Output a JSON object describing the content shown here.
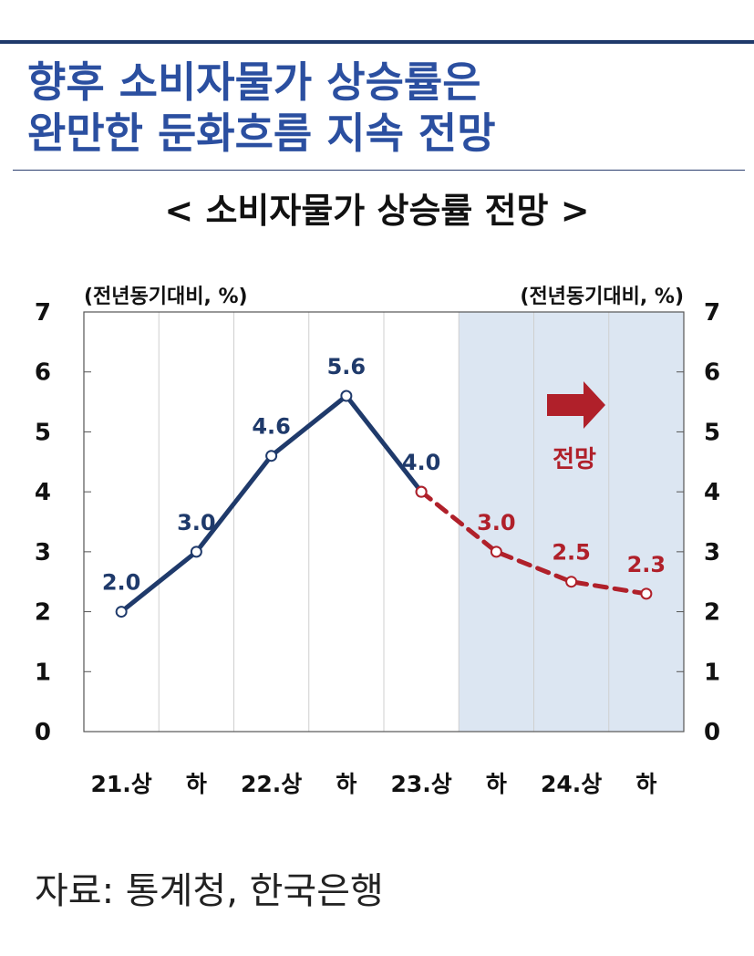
{
  "headline": {
    "line1": "향후 소비자물가 상승률은",
    "line2": "완만한 둔화흐름 지속 전망"
  },
  "colors": {
    "headline": "#2b4fa0",
    "actual_line": "#1f3a6b",
    "forecast_line": "#b0202a",
    "forecast_band": "#dce6f2",
    "rule": "#1f3a6b"
  },
  "chart_data": {
    "type": "line",
    "title": "< 소비자물가 상승률 전망 >",
    "unit_left": "(전년동기대비, %)",
    "unit_right": "(전년동기대비, %)",
    "categories": [
      "21.상",
      "하",
      "22.상",
      "하",
      "23.상",
      "하",
      "24.상",
      "하"
    ],
    "series": [
      {
        "kind": "actual",
        "values": [
          2.0,
          3.0,
          4.6,
          5.6,
          4.0,
          null,
          null,
          null
        ],
        "labels": [
          "2.0",
          "3.0",
          "4.6",
          "5.6",
          "4.0",
          "",
          "",
          ""
        ]
      },
      {
        "kind": "forecast",
        "values": [
          null,
          null,
          null,
          null,
          4.0,
          3.0,
          2.5,
          2.3
        ],
        "labels": [
          "",
          "",
          "",
          "",
          "",
          "3.0",
          "2.5",
          "2.3"
        ]
      }
    ],
    "ylim": [
      0,
      7
    ],
    "yticks": [
      "0",
      "1",
      "2",
      "3",
      "4",
      "5",
      "6",
      "7"
    ],
    "forecast_start_index": 5,
    "forecast_label": "전망",
    "grid": "vertical"
  },
  "source": "자료: 통계청, 한국은행"
}
